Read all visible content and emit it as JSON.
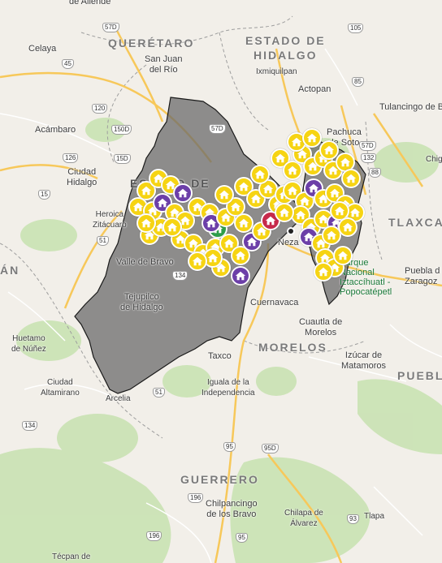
{
  "map": {
    "colors": {
      "land": "#f2efe9",
      "forest": "#c9e2b3",
      "road_major": "#f7c85a",
      "road_minor": "#ffffff",
      "region_fill": "#6b6b6b",
      "marker_yellow": "#f6d413",
      "marker_purple": "#6c3fa8",
      "marker_green": "#2e9d4a",
      "marker_red": "#c62a4b"
    },
    "states": [
      {
        "name": "QUERÉTARO"
      },
      {
        "name": "ESTADO DE"
      },
      {
        "name": "HIDALGO"
      },
      {
        "name": "TLAXCA"
      },
      {
        "name": "MORELOS"
      },
      {
        "name": "PUEBL"
      },
      {
        "name": "GUERRERO"
      },
      {
        "name": "ESTADO DE"
      },
      {
        "name": "ÁN"
      }
    ],
    "cities": [
      {
        "name": "de Allende"
      },
      {
        "name": "Celaya"
      },
      {
        "name": "San Juan\ndel Río"
      },
      {
        "name": "Ixmiquilpan"
      },
      {
        "name": "Actopan"
      },
      {
        "name": "Tulancingo de Bravo"
      },
      {
        "name": "Pachuca\nde Soto"
      },
      {
        "name": "Acámbaro"
      },
      {
        "name": "Ciudad\nHidalgo"
      },
      {
        "name": "Heroica\nZitácuaro"
      },
      {
        "name": "Valle de Bravo"
      },
      {
        "name": "Tejupilco\nde Hidalgo"
      },
      {
        "name": "Neza"
      },
      {
        "name": "Cuernavaca"
      },
      {
        "name": "Puebla d\nZaragoz"
      },
      {
        "name": "Cuautla de\nMorelos"
      },
      {
        "name": "Izúcar de\nMatamoros"
      },
      {
        "name": "Huetamo\nde Núñez"
      },
      {
        "name": "Ciudad\nAltamirano"
      },
      {
        "name": "Arcelia"
      },
      {
        "name": "Taxco"
      },
      {
        "name": "Iguala de la\nIndependencia"
      },
      {
        "name": "Chilpancingo\nde los Bravo"
      },
      {
        "name": "Chilapa de\nÁlvarez"
      },
      {
        "name": "Tlapa"
      },
      {
        "name": "Técpan de"
      },
      {
        "name": "Chig"
      }
    ],
    "parks": [
      {
        "name": "Parque\nNacional\nIztaccíhuatl -\nPopocatépetl"
      }
    ],
    "highways": [
      "57D",
      "105",
      "45",
      "120",
      "57D",
      "85",
      "126",
      "132",
      "88",
      "15D",
      "15",
      "51",
      "134",
      "95",
      "95D",
      "196",
      "95",
      "93",
      "196",
      "134",
      "51",
      "150D",
      "57D"
    ]
  }
}
